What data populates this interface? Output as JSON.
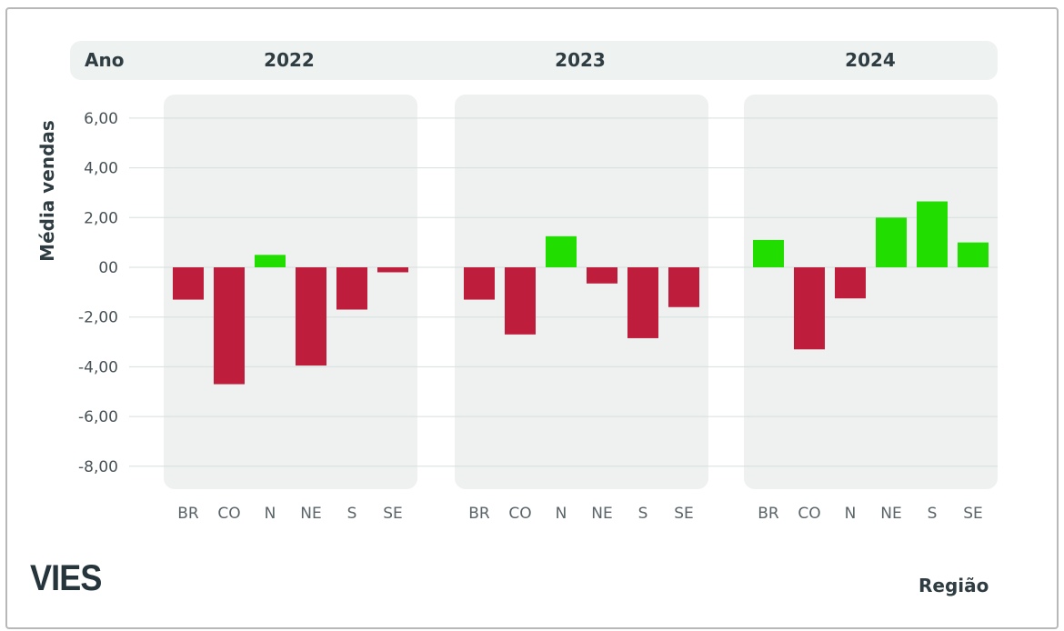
{
  "logo": "VIES",
  "chart_data": {
    "type": "bar",
    "facet_label": "Ano",
    "ylabel": "Média vendas",
    "xlabel": "Região",
    "ylim": [
      -8,
      6.5
    ],
    "yticks": [
      6,
      4,
      2,
      0,
      -2,
      -4,
      -6,
      -8
    ],
    "ytick_labels": [
      "6,00",
      "4,00",
      "2,00",
      "00",
      "-2,00",
      "-4,00",
      "-6,00",
      "-8,00"
    ],
    "grid": true,
    "categories": [
      "BR",
      "CO",
      "N",
      "NE",
      "S",
      "SE"
    ],
    "colors": {
      "positive": "#22dd00",
      "negative": "#be1e3c"
    },
    "facets": [
      {
        "year": "2022",
        "values": [
          -1.3,
          -4.7,
          0.5,
          -3.95,
          -1.7,
          -0.2
        ]
      },
      {
        "year": "2023",
        "values": [
          -1.3,
          -2.7,
          1.25,
          -0.65,
          -2.85,
          -1.6
        ]
      },
      {
        "year": "2024",
        "values": [
          1.1,
          -3.3,
          -1.25,
          2.0,
          2.65,
          1.0
        ]
      }
    ]
  }
}
